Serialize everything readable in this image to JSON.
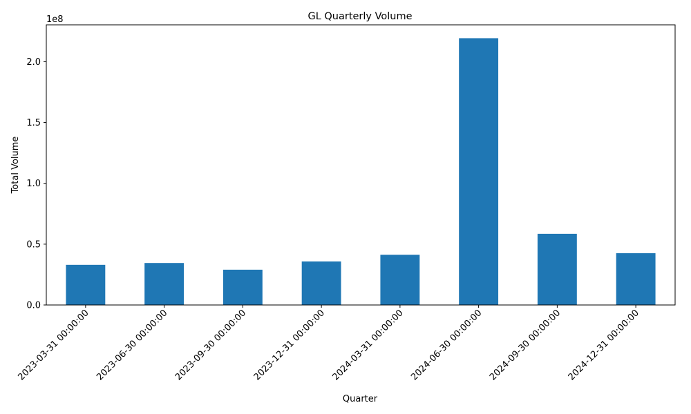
{
  "chart_data": {
    "type": "bar",
    "title": "GL Quarterly Volume",
    "xlabel": "Quarter",
    "ylabel": "Total Volume",
    "y_offset_label": "1e8",
    "categories": [
      "2023-03-31 00:00:00",
      "2023-06-30 00:00:00",
      "2023-09-30 00:00:00",
      "2023-12-31 00:00:00",
      "2024-03-31 00:00:00",
      "2024-06-30 00:00:00",
      "2024-09-30 00:00:00",
      "2024-12-31 00:00:00"
    ],
    "values": [
      33000000,
      34500000,
      29000000,
      35800000,
      41300000,
      219300000,
      58500000,
      42600000
    ],
    "y_ticks": [
      {
        "value": 0,
        "label": "0.0"
      },
      {
        "value": 50000000,
        "label": "0.5"
      },
      {
        "value": 100000000,
        "label": "1.0"
      },
      {
        "value": 150000000,
        "label": "1.5"
      },
      {
        "value": 200000000,
        "label": "2.0"
      }
    ],
    "ylim": [
      0,
      230300000
    ],
    "grid": false,
    "bar_color": "#1f77b4"
  }
}
